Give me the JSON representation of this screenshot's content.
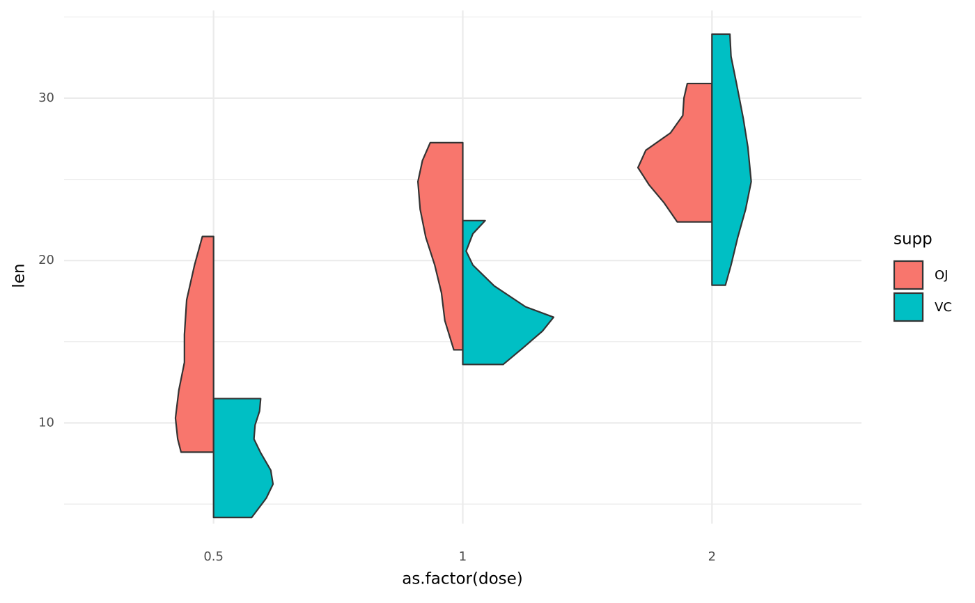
{
  "chart_data": {
    "type": "split-violin",
    "x_label": "as.factor(dose)",
    "y_label": "len",
    "categories": [
      "0.5",
      "1",
      "2"
    ],
    "ylim": [
      3.8,
      35.4
    ],
    "yticks": [
      10,
      20,
      30
    ],
    "y_minor_gridlines": [
      5,
      15,
      25,
      35
    ],
    "grid": true,
    "legend_title": "supp",
    "legend_position": "right",
    "series": [
      {
        "name": "OJ",
        "color": "#f8766d",
        "side": "left",
        "violins": [
          {
            "len": [
              21.48,
              19.72,
              17.58,
              15.44,
              13.73,
              12.01,
              10.3,
              9.01,
              8.2
            ],
            "density": [
              0.1,
              0.17,
              0.24,
              0.26,
              0.26,
              0.31,
              0.34,
              0.32,
              0.29
            ]
          },
          {
            "len": [
              27.26,
              26.15,
              24.86,
              23.15,
              21.43,
              19.72,
              18.01,
              16.3,
              14.5
            ],
            "density": [
              0.29,
              0.36,
              0.4,
              0.38,
              0.33,
              0.25,
              0.19,
              0.16,
              0.08
            ]
          },
          {
            "len": [
              30.9,
              30.0,
              28.93,
              27.86,
              26.79,
              25.72,
              24.65,
              23.58,
              22.38
            ],
            "density": [
              0.22,
              0.25,
              0.26,
              0.37,
              0.59,
              0.66,
              0.56,
              0.43,
              0.31
            ]
          }
        ]
      },
      {
        "name": "VC",
        "color": "#00bfc4",
        "side": "right",
        "violins": [
          {
            "len": [
              11.5,
              10.73,
              9.87,
              9.01,
              8.16,
              7.09,
              6.23,
              5.37,
              4.18
            ],
            "density": [
              0.42,
              0.41,
              0.37,
              0.36,
              0.42,
              0.51,
              0.53,
              0.47,
              0.34
            ]
          },
          {
            "len": [
              22.46,
              21.65,
              20.58,
              19.72,
              18.44,
              17.15,
              16.51,
              15.65,
              14.58,
              13.6
            ],
            "density": [
              0.2,
              0.09,
              0.03,
              0.09,
              0.28,
              0.56,
              0.81,
              0.71,
              0.53,
              0.36
            ]
          },
          {
            "len": [
              33.94,
              32.57,
              30.86,
              28.72,
              27.0,
              24.86,
              23.15,
              21.43,
              19.72,
              18.48
            ],
            "density": [
              0.16,
              0.17,
              0.22,
              0.28,
              0.32,
              0.35,
              0.3,
              0.23,
              0.17,
              0.12
            ]
          }
        ]
      }
    ]
  }
}
